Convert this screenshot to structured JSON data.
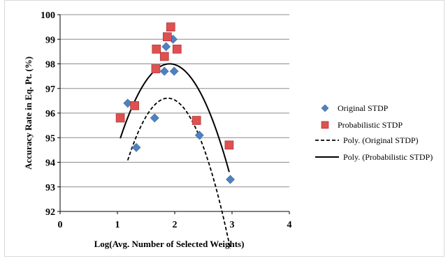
{
  "chart_data": {
    "type": "scatter",
    "title": "",
    "xlabel": "Log(Avg. Number  of  Selected Weights)",
    "ylabel": "Accuracy  Rate in Eq. Pt. (%)",
    "xlim": [
      0,
      4
    ],
    "ylim": [
      92,
      100
    ],
    "x_ticks": [
      "0",
      "1",
      "2",
      "3",
      "4"
    ],
    "y_ticks": [
      "92",
      "93",
      "94",
      "95",
      "96",
      "97",
      "98",
      "99",
      "100"
    ],
    "grid": "horizontal",
    "legend_position": "right",
    "series": [
      {
        "name": "Original STDP",
        "kind": "points",
        "marker": "diamond",
        "color": "#4f81bd",
        "points": [
          [
            1.18,
            96.4
          ],
          [
            1.33,
            94.6
          ],
          [
            1.65,
            95.8
          ],
          [
            1.82,
            97.7
          ],
          [
            1.85,
            98.7
          ],
          [
            1.97,
            99.0
          ],
          [
            1.99,
            97.7
          ],
          [
            2.43,
            95.1
          ],
          [
            2.97,
            93.3
          ]
        ]
      },
      {
        "name": "Probabilistic STDP",
        "kind": "points",
        "marker": "square",
        "color": "#e05050",
        "points": [
          [
            1.05,
            95.8
          ],
          [
            1.3,
            96.3
          ],
          [
            1.67,
            97.8
          ],
          [
            1.68,
            98.6
          ],
          [
            1.82,
            98.3
          ],
          [
            1.87,
            99.1
          ],
          [
            1.93,
            99.5
          ],
          [
            2.04,
            98.6
          ],
          [
            2.38,
            95.7
          ],
          [
            2.95,
            94.7
          ]
        ]
      },
      {
        "name": "Poly. (Original STDP)",
        "kind": "trend",
        "style": "dashed",
        "color": "#000000",
        "x_range": [
          1.18,
          2.97
        ],
        "coefficients": [
          78.37,
          19.4,
          -5.16
        ]
      },
      {
        "name": "Poly. (Probabilistic STDP)",
        "kind": "trend",
        "style": "solid",
        "color": "#000000",
        "x_range": [
          1.05,
          2.95
        ],
        "coefficients": [
          83.09,
          15.6,
          -4.08
        ]
      }
    ]
  }
}
